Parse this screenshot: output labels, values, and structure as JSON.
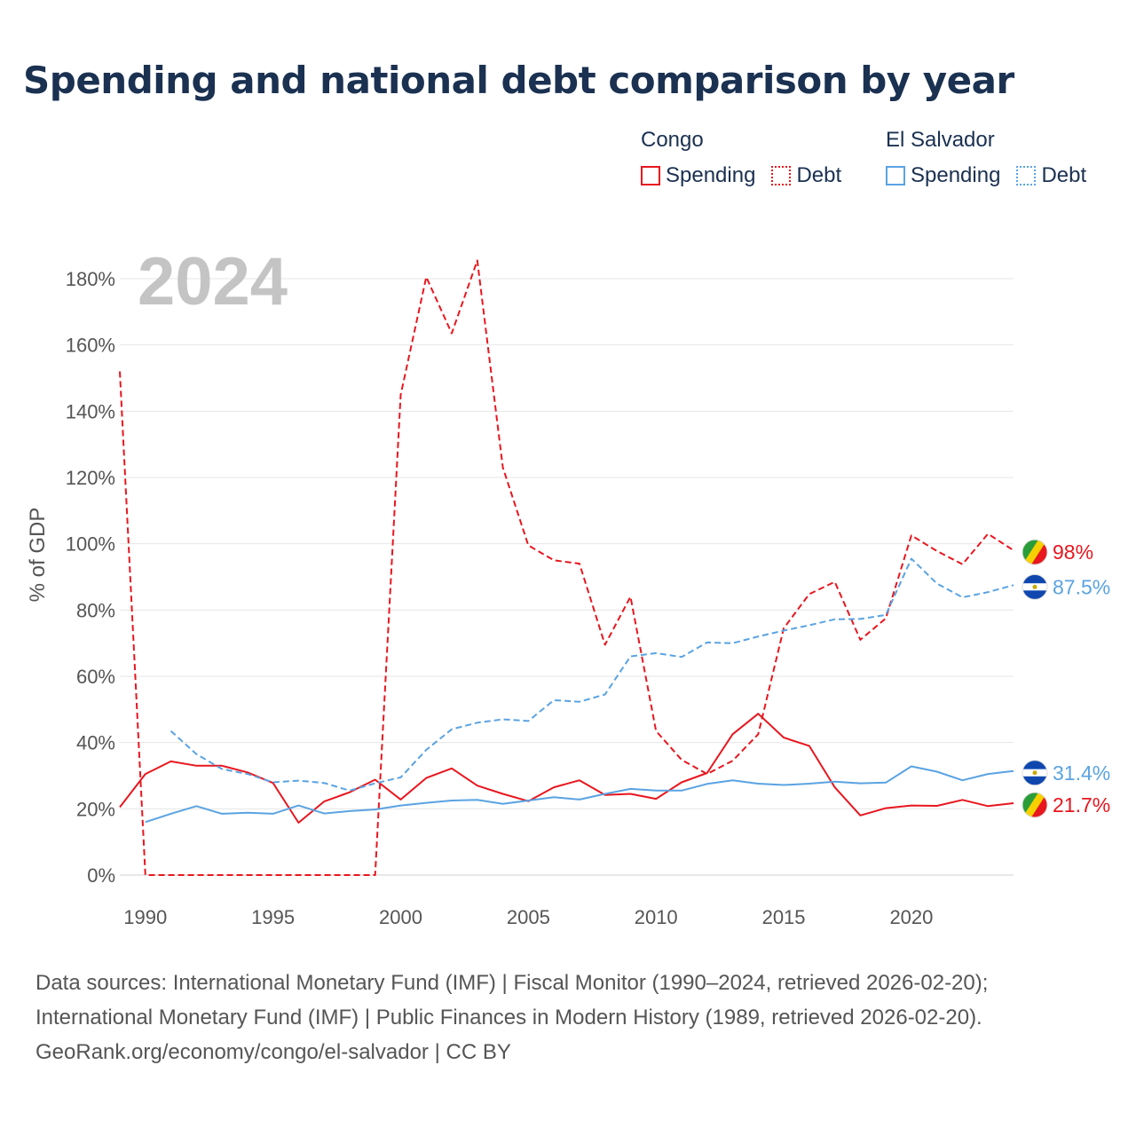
{
  "title": "Spending and national debt comparison by year",
  "legend": {
    "groups": [
      {
        "country": "Congo",
        "spending": "Spending",
        "debt": "Debt"
      },
      {
        "country": "El Salvador",
        "spending": "Spending",
        "debt": "Debt"
      }
    ]
  },
  "year_label": "2024",
  "footer": {
    "line1": "Data sources: International Monetary Fund (IMF) | Fiscal Monitor (1990–2024, retrieved 2026-02-20);",
    "line2": "International Monetary Fund (IMF) | Public Finances in Modern History (1989, retrieved 2026-02-20).",
    "line3": "GeoRank.org/economy/congo/el-salvador | CC BY"
  },
  "colors": {
    "congo": "#e8161e",
    "el_salvador": "#5aa3e2",
    "title": "#1b3151",
    "grid": "#e6e6e6"
  },
  "chart_data": {
    "type": "line",
    "title": "Spending and national debt comparison by year",
    "ylabel": "% of GDP",
    "xlabel": "",
    "xlim": [
      1989,
      2024
    ],
    "ylim": [
      0,
      180
    ],
    "x_ticks": [
      1990,
      1995,
      2000,
      2005,
      2010,
      2015,
      2020
    ],
    "y_ticks": [
      0,
      20,
      40,
      60,
      80,
      100,
      120,
      140,
      160,
      180
    ],
    "y_tick_labels": [
      "0%",
      "20%",
      "40%",
      "60%",
      "80%",
      "100%",
      "120%",
      "140%",
      "160%",
      "180%"
    ],
    "series": [
      {
        "name": "Congo Spending",
        "country": "Congo",
        "kind": "spending",
        "color": "#e8161e",
        "dash": false,
        "end_label": "21.7%",
        "x": [
          1989,
          1990,
          1991,
          1992,
          1993,
          1994,
          1995,
          1996,
          1997,
          1998,
          1999,
          2000,
          2001,
          2002,
          2003,
          2004,
          2005,
          2006,
          2007,
          2008,
          2009,
          2010,
          2011,
          2012,
          2013,
          2014,
          2015,
          2016,
          2017,
          2018,
          2019,
          2020,
          2021,
          2022,
          2023,
          2024
        ],
        "values": [
          20.5,
          30.5,
          34.3,
          33,
          33,
          31,
          27.8,
          15.8,
          22.2,
          25,
          28.8,
          22.8,
          29.3,
          32.2,
          27,
          24.5,
          22.3,
          26.5,
          28.6,
          24.2,
          24.5,
          23,
          28,
          30.8,
          42.5,
          48.7,
          41.5,
          39,
          26.5,
          18,
          20.2,
          21,
          20.9,
          22.7,
          20.8,
          21.7
        ]
      },
      {
        "name": "Congo Debt",
        "country": "Congo",
        "kind": "debt",
        "color": "#e8161e",
        "dash": true,
        "end_label": "98%",
        "x": [
          1989,
          1990,
          1991,
          1992,
          1993,
          1994,
          1995,
          1996,
          1997,
          1998,
          1999,
          2000,
          2001,
          2002,
          2003,
          2004,
          2005,
          2006,
          2007,
          2008,
          2009,
          2010,
          2011,
          2012,
          2013,
          2014,
          2015,
          2016,
          2017,
          2018,
          2019,
          2020,
          2021,
          2022,
          2023,
          2024
        ],
        "values": [
          152,
          0,
          0,
          0,
          0,
          0,
          0,
          0,
          0,
          0,
          0,
          145,
          180.5,
          163.5,
          185.5,
          123,
          99.5,
          95,
          94,
          69.5,
          84,
          43.5,
          34.8,
          30.5,
          34.5,
          42.5,
          74.5,
          84.8,
          88.5,
          71,
          77.5,
          102.5,
          97.8,
          93.8,
          103,
          98
        ]
      },
      {
        "name": "El Salvador Spending",
        "country": "El Salvador",
        "kind": "spending",
        "color": "#5aa3e2",
        "dash": false,
        "end_label": "31.4%",
        "x": [
          1990,
          1991,
          1992,
          1993,
          1994,
          1995,
          1996,
          1997,
          1998,
          1999,
          2000,
          2001,
          2002,
          2003,
          2004,
          2005,
          2006,
          2007,
          2008,
          2009,
          2010,
          2011,
          2012,
          2013,
          2014,
          2015,
          2016,
          2017,
          2018,
          2019,
          2020,
          2021,
          2022,
          2023,
          2024
        ],
        "values": [
          16,
          18.5,
          20.8,
          18.5,
          18.8,
          18.5,
          21,
          18.6,
          19.3,
          19.8,
          21,
          21.8,
          22.5,
          22.7,
          21.5,
          22.5,
          23.5,
          22.8,
          24.5,
          26,
          25.5,
          25.5,
          27.5,
          28.6,
          27.6,
          27.2,
          27.6,
          28.2,
          27.7,
          27.9,
          32.8,
          31.2,
          28.6,
          30.5,
          31.4
        ]
      },
      {
        "name": "El Salvador Debt",
        "country": "El Salvador",
        "kind": "debt",
        "color": "#5aa3e2",
        "dash": true,
        "end_label": "87.5%",
        "x": [
          1991,
          1992,
          1993,
          1994,
          1995,
          1996,
          1997,
          1998,
          1999,
          2000,
          2001,
          2002,
          2003,
          2004,
          2005,
          2006,
          2007,
          2008,
          2009,
          2010,
          2011,
          2012,
          2013,
          2014,
          2015,
          2016,
          2017,
          2018,
          2019,
          2020,
          2021,
          2022,
          2023,
          2024
        ],
        "values": [
          43.5,
          36.5,
          32,
          30.5,
          28,
          28.5,
          27.8,
          25.5,
          27.7,
          29.5,
          37.8,
          44,
          46,
          47,
          46.5,
          52.8,
          52.3,
          54.5,
          66,
          67,
          65.8,
          70.2,
          70,
          72,
          73.8,
          75.4,
          77.2,
          77.3,
          78.5,
          95.5,
          88,
          83.8,
          85.4,
          87.5
        ]
      }
    ]
  }
}
